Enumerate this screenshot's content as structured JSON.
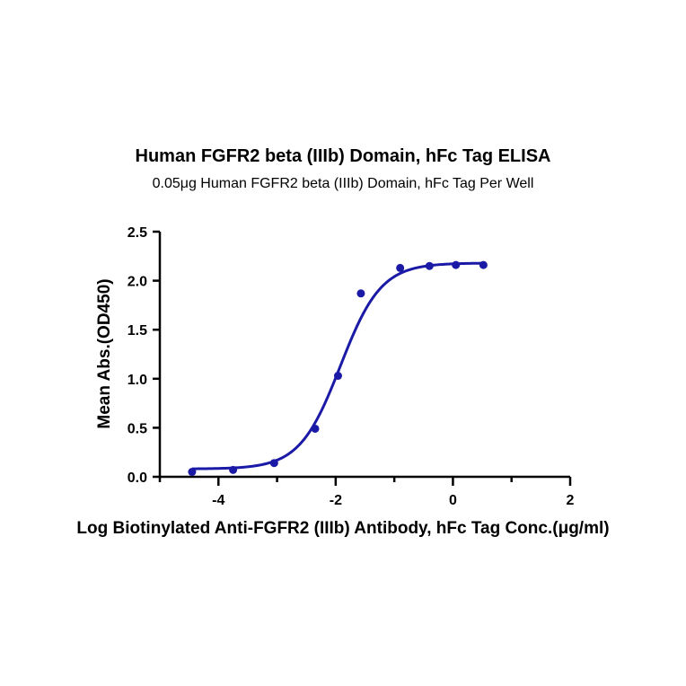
{
  "chart_data": {
    "type": "scatter",
    "title": "Human FGFR2 beta (IIIb) Domain, hFc Tag ELISA",
    "subtitle": "0.05μg Human FGFR2 beta (IIIb)  Domain, hFc Tag Per Well",
    "xlabel": "Log Biotinylated Anti-FGFR2 (IIIb) Antibody, hFc Tag Conc.(μg/ml)",
    "ylabel": "Mean Abs.(OD450)",
    "xlim": [
      -5,
      2
    ],
    "ylim": [
      0,
      2.5
    ],
    "xticks": [
      -4,
      -2,
      0,
      2
    ],
    "xtick_labels": [
      "-4",
      "-2",
      "0",
      "2"
    ],
    "yticks": [
      0,
      0.5,
      1.0,
      1.5,
      2.0,
      2.5
    ],
    "ytick_labels": [
      "0.0",
      "0.5",
      "1.0",
      "1.5",
      "2.0",
      "2.5"
    ],
    "grid": false,
    "legend": "none",
    "series": [
      {
        "color": "#1a1aa6",
        "x": [
          -4.45,
          -3.75,
          -3.05,
          -2.35,
          -1.96,
          -1.57,
          -0.9,
          -0.4,
          0.05,
          0.52
        ],
        "y": [
          0.05,
          0.07,
          0.14,
          0.49,
          1.03,
          1.87,
          2.13,
          2.15,
          2.16,
          2.16
        ]
      }
    ],
    "fit_curve": {
      "model": "4PL",
      "bottom": 0.08,
      "top": 2.18,
      "log_ec50": -1.92,
      "hill_slope": 1.25,
      "x_range": [
        -4.45,
        0.52
      ]
    }
  }
}
